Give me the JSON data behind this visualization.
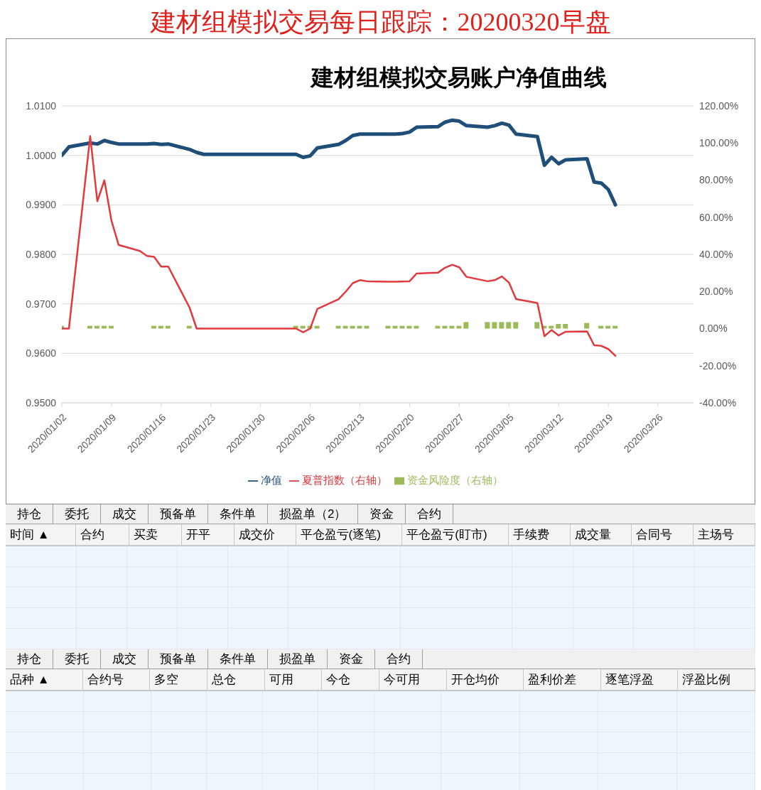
{
  "chart_data": [
    {
      "type": "line",
      "title": "建材组模拟交易每日跟踪：20200320早盘",
      "subtitle": "建材组模拟交易账户净值曲线",
      "x": [
        "2020-01-02",
        "2020-01-03",
        "2020-01-06",
        "2020-01-07",
        "2020-01-08",
        "2020-01-09",
        "2020-01-10",
        "2020-01-13",
        "2020-01-14",
        "2020-01-15",
        "2020-01-16",
        "2020-01-17",
        "2020-01-20",
        "2020-01-21",
        "2020-01-22",
        "2020-01-23",
        "2020-02-03",
        "2020-02-04",
        "2020-02-05",
        "2020-02-06",
        "2020-02-07",
        "2020-02-10",
        "2020-02-11",
        "2020-02-12",
        "2020-02-13",
        "2020-02-14",
        "2020-02-17",
        "2020-02-18",
        "2020-02-19",
        "2020-02-20",
        "2020-02-21",
        "2020-02-24",
        "2020-02-25",
        "2020-02-26",
        "2020-02-27",
        "2020-02-28",
        "2020-03-02",
        "2020-03-03",
        "2020-03-04",
        "2020-03-05",
        "2020-03-06",
        "2020-03-09",
        "2020-03-10",
        "2020-03-11",
        "2020-03-12",
        "2020-03-13",
        "2020-03-16",
        "2020-03-17",
        "2020-03-18",
        "2020-03-19",
        "2020-03-20"
      ],
      "series": [
        {
          "name": "资金风险度（右轴）",
          "type": "bar",
          "axis": "y2",
          "color": "#9bbb59",
          "values": [
            1.5,
            null,
            1.5,
            1.5,
            1.5,
            1.5,
            null,
            null,
            null,
            1.5,
            1.5,
            1.5,
            1.5,
            null,
            null,
            null,
            null,
            1.5,
            1.5,
            1.5,
            1.5,
            1.5,
            1.5,
            1.5,
            1.5,
            1.5,
            1.5,
            1.5,
            1.5,
            1.5,
            1.5,
            1.5,
            1.5,
            1.5,
            1.5,
            3.5,
            3.5,
            3.5,
            3.5,
            3.5,
            3.5,
            3.5,
            1.5,
            1.5,
            2.5,
            2.5,
            3,
            null,
            1.5,
            1.5,
            1.5
          ]
        },
        {
          "name": "净值",
          "type": "line",
          "color": "#1f4e79",
          "values": [
            1.0,
            1.0017,
            1.0025,
            1.0023,
            1.003,
            1.0026,
            1.0023,
            1.0023,
            1.0023,
            1.0024,
            1.0022,
            1.0023,
            1.0012,
            1.0006,
            1.0002,
            1.0002,
            1.0002,
            1.0002,
            0.9996,
            0.9999,
            1.0015,
            1.0022,
            1.003,
            1.004,
            1.0043,
            1.0043,
            1.0043,
            1.0043,
            1.0044,
            1.0047,
            1.0057,
            1.0058,
            1.0067,
            1.0071,
            1.0069,
            1.006,
            1.0057,
            1.006,
            1.0065,
            1.0061,
            1.0043,
            1.0038,
            0.998,
            0.9996,
            0.9983,
            0.9991,
            0.9993,
            0.9946,
            0.9944,
            0.9931,
            0.99
          ]
        },
        {
          "name": "夏普指数（右轴）",
          "type": "line",
          "axis": "y2",
          "color": "#e0393e",
          "values": [
            0,
            0,
            103.7,
            68.6,
            79.9,
            58.0,
            45.1,
            41.8,
            39.1,
            38.7,
            33.4,
            33.4,
            11.3,
            0,
            0,
            0,
            0,
            0,
            -2.0,
            0,
            10.6,
            15.8,
            19.9,
            24.5,
            26.1,
            25.5,
            25.3,
            25.3,
            25.4,
            25.5,
            29.7,
            30.1,
            32.8,
            34.4,
            33.0,
            27.9,
            25.5,
            26.1,
            28.1,
            24.8,
            15.9,
            13.8,
            -4.1,
            -0.8,
            -3.7,
            -1.7,
            -1.5,
            -9.0,
            -9.3,
            -11.0,
            -14.7
          ]
        }
      ],
      "xlim": [
        "2020-01-02",
        "2020-03-31"
      ],
      "xticks": [
        {
          "value": "2020-01-02",
          "label": "2020/01/02"
        },
        {
          "value": "2020-01-09",
          "label": "2020/01/09"
        },
        {
          "value": "2020-01-16",
          "label": "2020/01/16"
        },
        {
          "value": "2020-01-23",
          "label": "2020/01/23"
        },
        {
          "value": "2020-01-30",
          "label": "2020/01/30"
        },
        {
          "value": "2020-02-06",
          "label": "2020/02/06"
        },
        {
          "value": "2020-02-13",
          "label": "2020/02/13"
        },
        {
          "value": "2020-02-20",
          "label": "2020/02/20"
        },
        {
          "value": "2020-02-27",
          "label": "2020/02/27"
        },
        {
          "value": "2020-03-05",
          "label": "2020/03/05"
        },
        {
          "value": "2020-03-12",
          "label": "2020/03/12"
        },
        {
          "value": "2020-03-19",
          "label": "2020/03/19"
        },
        {
          "value": "2020-03-26",
          "label": "2020/03/26"
        }
      ],
      "ylim": [
        0.95,
        1.01
      ],
      "yticks": [
        {
          "value": 0.95,
          "label": "0.9500"
        },
        {
          "value": 0.96,
          "label": "0.9600"
        },
        {
          "value": 0.97,
          "label": "0.9700"
        },
        {
          "value": 0.98,
          "label": "0.9800"
        },
        {
          "value": 0.99,
          "label": "0.9900"
        },
        {
          "value": 1.0,
          "label": "1.0000"
        },
        {
          "value": 1.01,
          "label": "1.0100"
        }
      ],
      "y2lim": [
        -40,
        120
      ],
      "y2ticks": [
        {
          "value": -40,
          "label": "-40.00%"
        },
        {
          "value": -20,
          "label": "-20.00%"
        },
        {
          "value": 0,
          "label": "0.00%"
        },
        {
          "value": 20,
          "label": "20.00%"
        },
        {
          "value": 40,
          "label": "40.00%"
        },
        {
          "value": 60,
          "label": "60.00%"
        },
        {
          "value": 80,
          "label": "80.00%"
        },
        {
          "value": 100,
          "label": "100.00%"
        },
        {
          "value": 120,
          "label": "120.00%"
        }
      ],
      "grid": "y",
      "legend": "bottom",
      "marker": "none"
    },
    {
      "type": "other",
      "annotations": [
        "持仓",
        "委托",
        "成交",
        "预备单",
        "条件单",
        "损盈单（2）",
        "资金",
        "合约"
      ],
      "categories": [
        "时间 ▲",
        "合约",
        "买卖",
        "开平",
        "成交价",
        "平仓盈亏(逐笔)",
        "平仓盈亏(盯市)",
        "手续费",
        "成交量",
        "合同号",
        "主场号"
      ]
    },
    {
      "type": "other",
      "annotations": [
        "持仓",
        "委托",
        "成交",
        "预备单",
        "条件单",
        "损盈单",
        "资金",
        "合约"
      ],
      "categories": [
        "品种 ▲",
        "合约号",
        "多空",
        "总仓",
        "可用",
        "今仓",
        "今可用",
        "开仓均价",
        "盈利价差",
        "逐笔浮盈",
        "浮盈比例"
      ]
    }
  ]
}
